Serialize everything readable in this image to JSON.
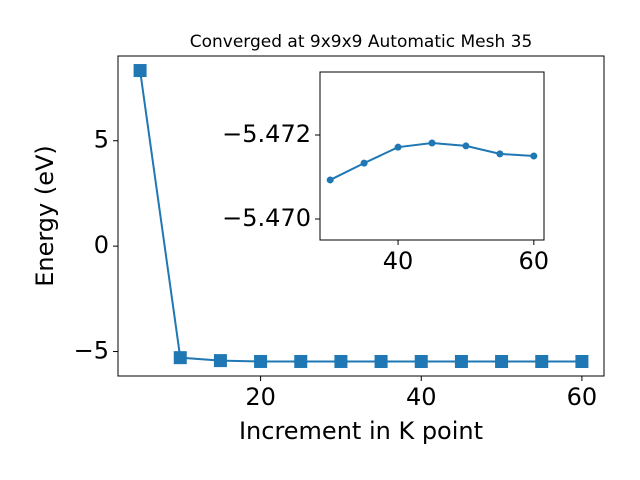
{
  "chart_data": [
    {
      "type": "line",
      "title": "Converged at 9x9x9 Automatic Mesh 35",
      "xlabel": "Increment in K point",
      "ylabel": "Energy (eV)",
      "x": [
        5,
        10,
        15,
        20,
        25,
        30,
        35,
        40,
        45,
        50,
        55,
        60
      ],
      "series": [
        {
          "color": "#1f77b4",
          "marker": "square",
          "values": [
            8.33,
            -5.29,
            -5.43,
            -5.4705,
            -5.4708,
            -5.47093,
            -5.47133,
            -5.47171,
            -5.47181,
            -5.47174,
            -5.47155,
            -5.4715
          ]
        }
      ],
      "xlim": [
        2.25,
        62.75
      ],
      "xticks": [
        20,
        40,
        60
      ],
      "ylim": [
        -6.16,
        9.02
      ],
      "yticks": [
        {
          "value": -5,
          "label": "−5"
        },
        0,
        5
      ]
    },
    {
      "type": "line",
      "x": [
        30,
        35,
        40,
        45,
        50,
        55,
        60
      ],
      "series": [
        {
          "color": "#1f77b4",
          "marker": "circle",
          "values": [
            -5.47093,
            -5.47133,
            -5.47171,
            -5.47181,
            -5.47174,
            -5.47155,
            -5.4715
          ]
        }
      ],
      "xlim": [
        28.5,
        61.5
      ],
      "xticks": [
        40,
        60
      ],
      "ylim": [
        -5.4695,
        -5.4735
      ],
      "yticks": [
        {
          "value": -5.47,
          "label": "−5.470"
        },
        {
          "value": -5.472,
          "label": "−5.472"
        }
      ]
    }
  ]
}
